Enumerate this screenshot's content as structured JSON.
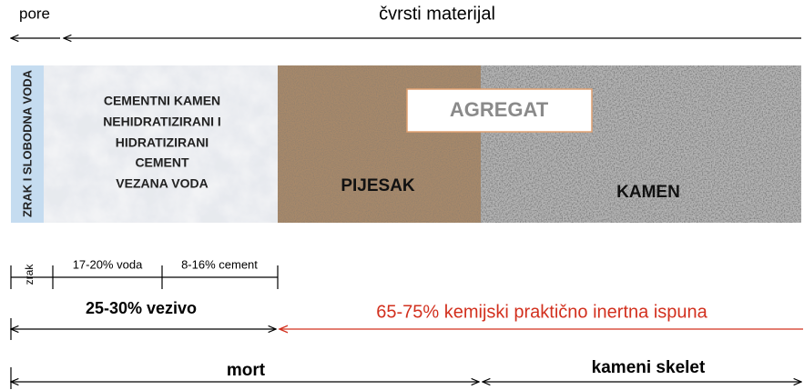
{
  "top": {
    "pore": "pore",
    "solid": "čvrsti materijal"
  },
  "layers": {
    "air_water": "ZRAK I SLOBODNA VODA",
    "cement_stone": [
      "CEMENTNI KAMEN",
      "NEHIDRATIZIRANI I",
      "HIDRATIZIRANI",
      "CEMENT",
      "VEZANA VODA"
    ],
    "aggregate": "AGREGAT",
    "sand": "PIJESAK",
    "stone": "KAMEN"
  },
  "bottom": {
    "air": "zrak",
    "water": "17-20% voda",
    "cement": "8-16% cement",
    "binder": "25-30% vezivo",
    "filler": "65-75% kemijski praktično inertna ispuna",
    "mortar": "mort",
    "skeleton": "kameni skelet"
  }
}
